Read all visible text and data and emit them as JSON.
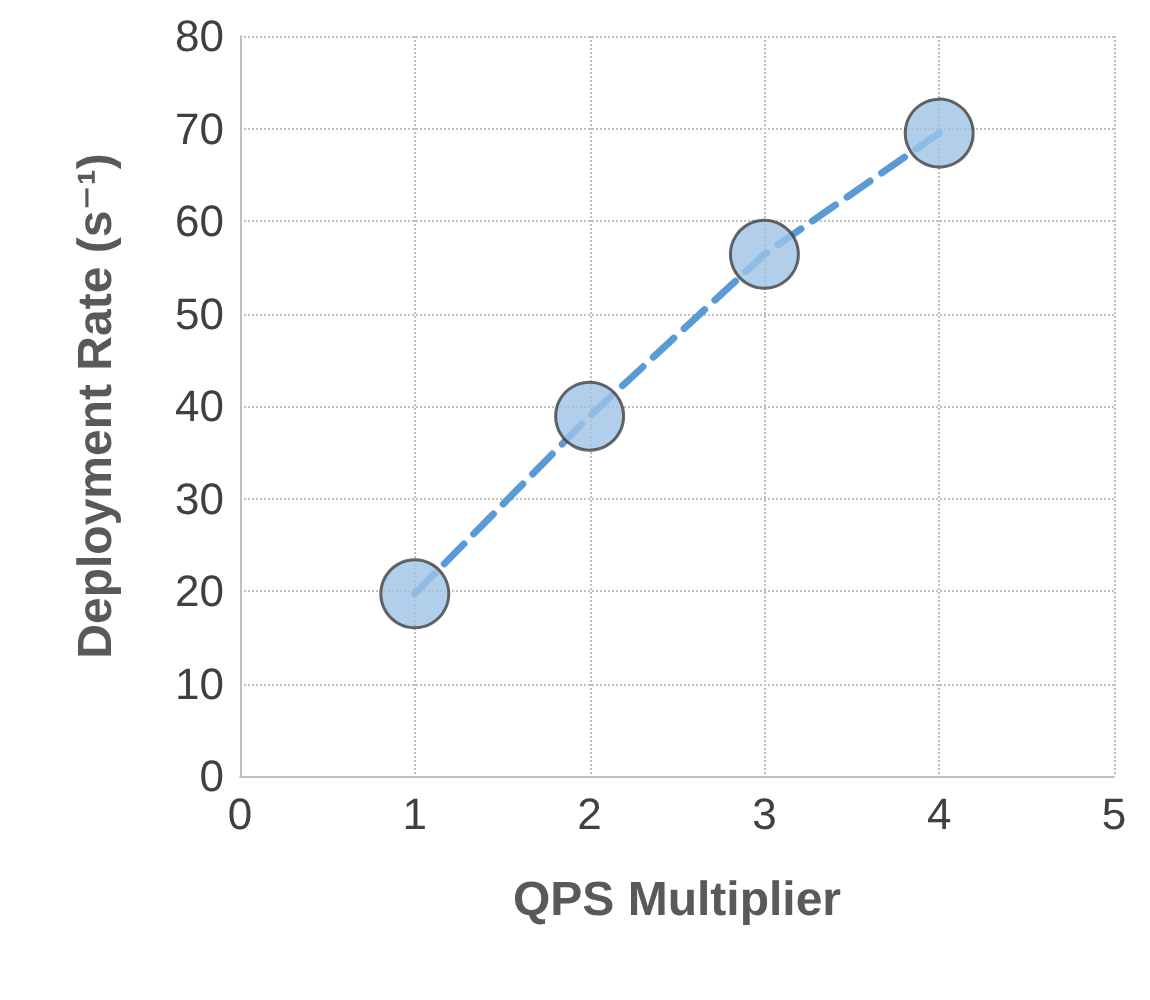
{
  "chart_data": {
    "type": "scatter",
    "xlabel": "QPS Multiplier",
    "ylabel": "Deployment Rate (s⁻¹)",
    "xlim": [
      0,
      5
    ],
    "xticks": [
      0,
      1,
      2,
      3,
      4,
      5
    ],
    "ylim": [
      0,
      80
    ],
    "yticks": [
      0,
      10,
      20,
      30,
      40,
      50,
      60,
      70,
      80
    ],
    "grid": true,
    "series": [
      {
        "type": "line",
        "color": "#5b9bd5",
        "x": [
          1,
          2,
          3,
          4
        ],
        "values": [
          19.7,
          38.9,
          56.4,
          69.5
        ],
        "marker": "none",
        "line_style": "dashed"
      },
      {
        "color": "#9dc3e6",
        "x": [
          1,
          2,
          3,
          4
        ],
        "values": [
          19.7,
          38.9,
          56.4,
          69.5
        ],
        "marker": "circle"
      }
    ]
  }
}
